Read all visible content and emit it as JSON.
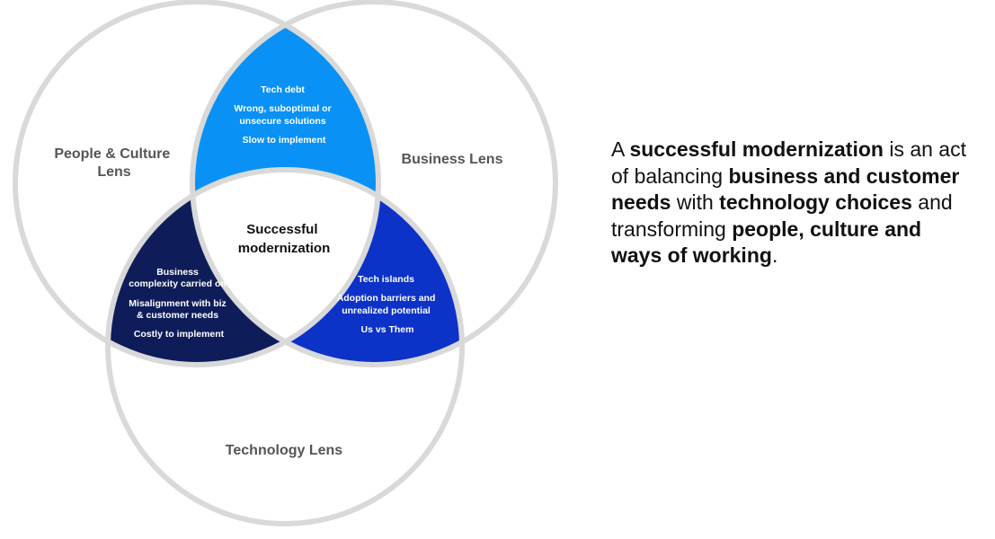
{
  "diagram": {
    "type": "venn",
    "circles": [
      {
        "key": "people",
        "label_lines": [
          "People & Culture",
          "Lens"
        ]
      },
      {
        "key": "business",
        "label_lines": [
          "Business Lens"
        ]
      },
      {
        "key": "technology",
        "label_lines": [
          "Technology Lens"
        ]
      }
    ],
    "center": {
      "lines": [
        "Successful",
        "modernization"
      ]
    },
    "regions": {
      "people_business": {
        "color": "#0a91f5",
        "items": [
          [
            "Tech debt"
          ],
          [
            "Wrong, suboptimal or",
            "unsecure solutions"
          ],
          [
            "Slow to implement"
          ]
        ]
      },
      "people_technology": {
        "color": "#0e1d59",
        "items": [
          [
            "Business",
            "complexity carried on"
          ],
          [
            "Misalignment  with biz",
            "& customer needs"
          ],
          [
            "Costly to implement"
          ]
        ]
      },
      "business_technology": {
        "color": "#0c32c8",
        "items": [
          [
            "Tech islands"
          ],
          [
            "Adoption barriers and",
            "unrealized potential"
          ],
          [
            "Us vs Them"
          ]
        ]
      }
    },
    "circle_stroke_color": "#d9d9d9"
  },
  "statement": {
    "segments": [
      {
        "text": "A ",
        "bold": false
      },
      {
        "text": "successful modernization",
        "bold": true
      },
      {
        "text": " is an act of balancing ",
        "bold": false
      },
      {
        "text": "business and customer needs",
        "bold": true
      },
      {
        "text": " with ",
        "bold": false
      },
      {
        "text": "technology choices",
        "bold": true
      },
      {
        "text": " and transforming ",
        "bold": false
      },
      {
        "text": "people, culture and ways of working",
        "bold": true
      },
      {
        "text": ".",
        "bold": false
      }
    ]
  }
}
